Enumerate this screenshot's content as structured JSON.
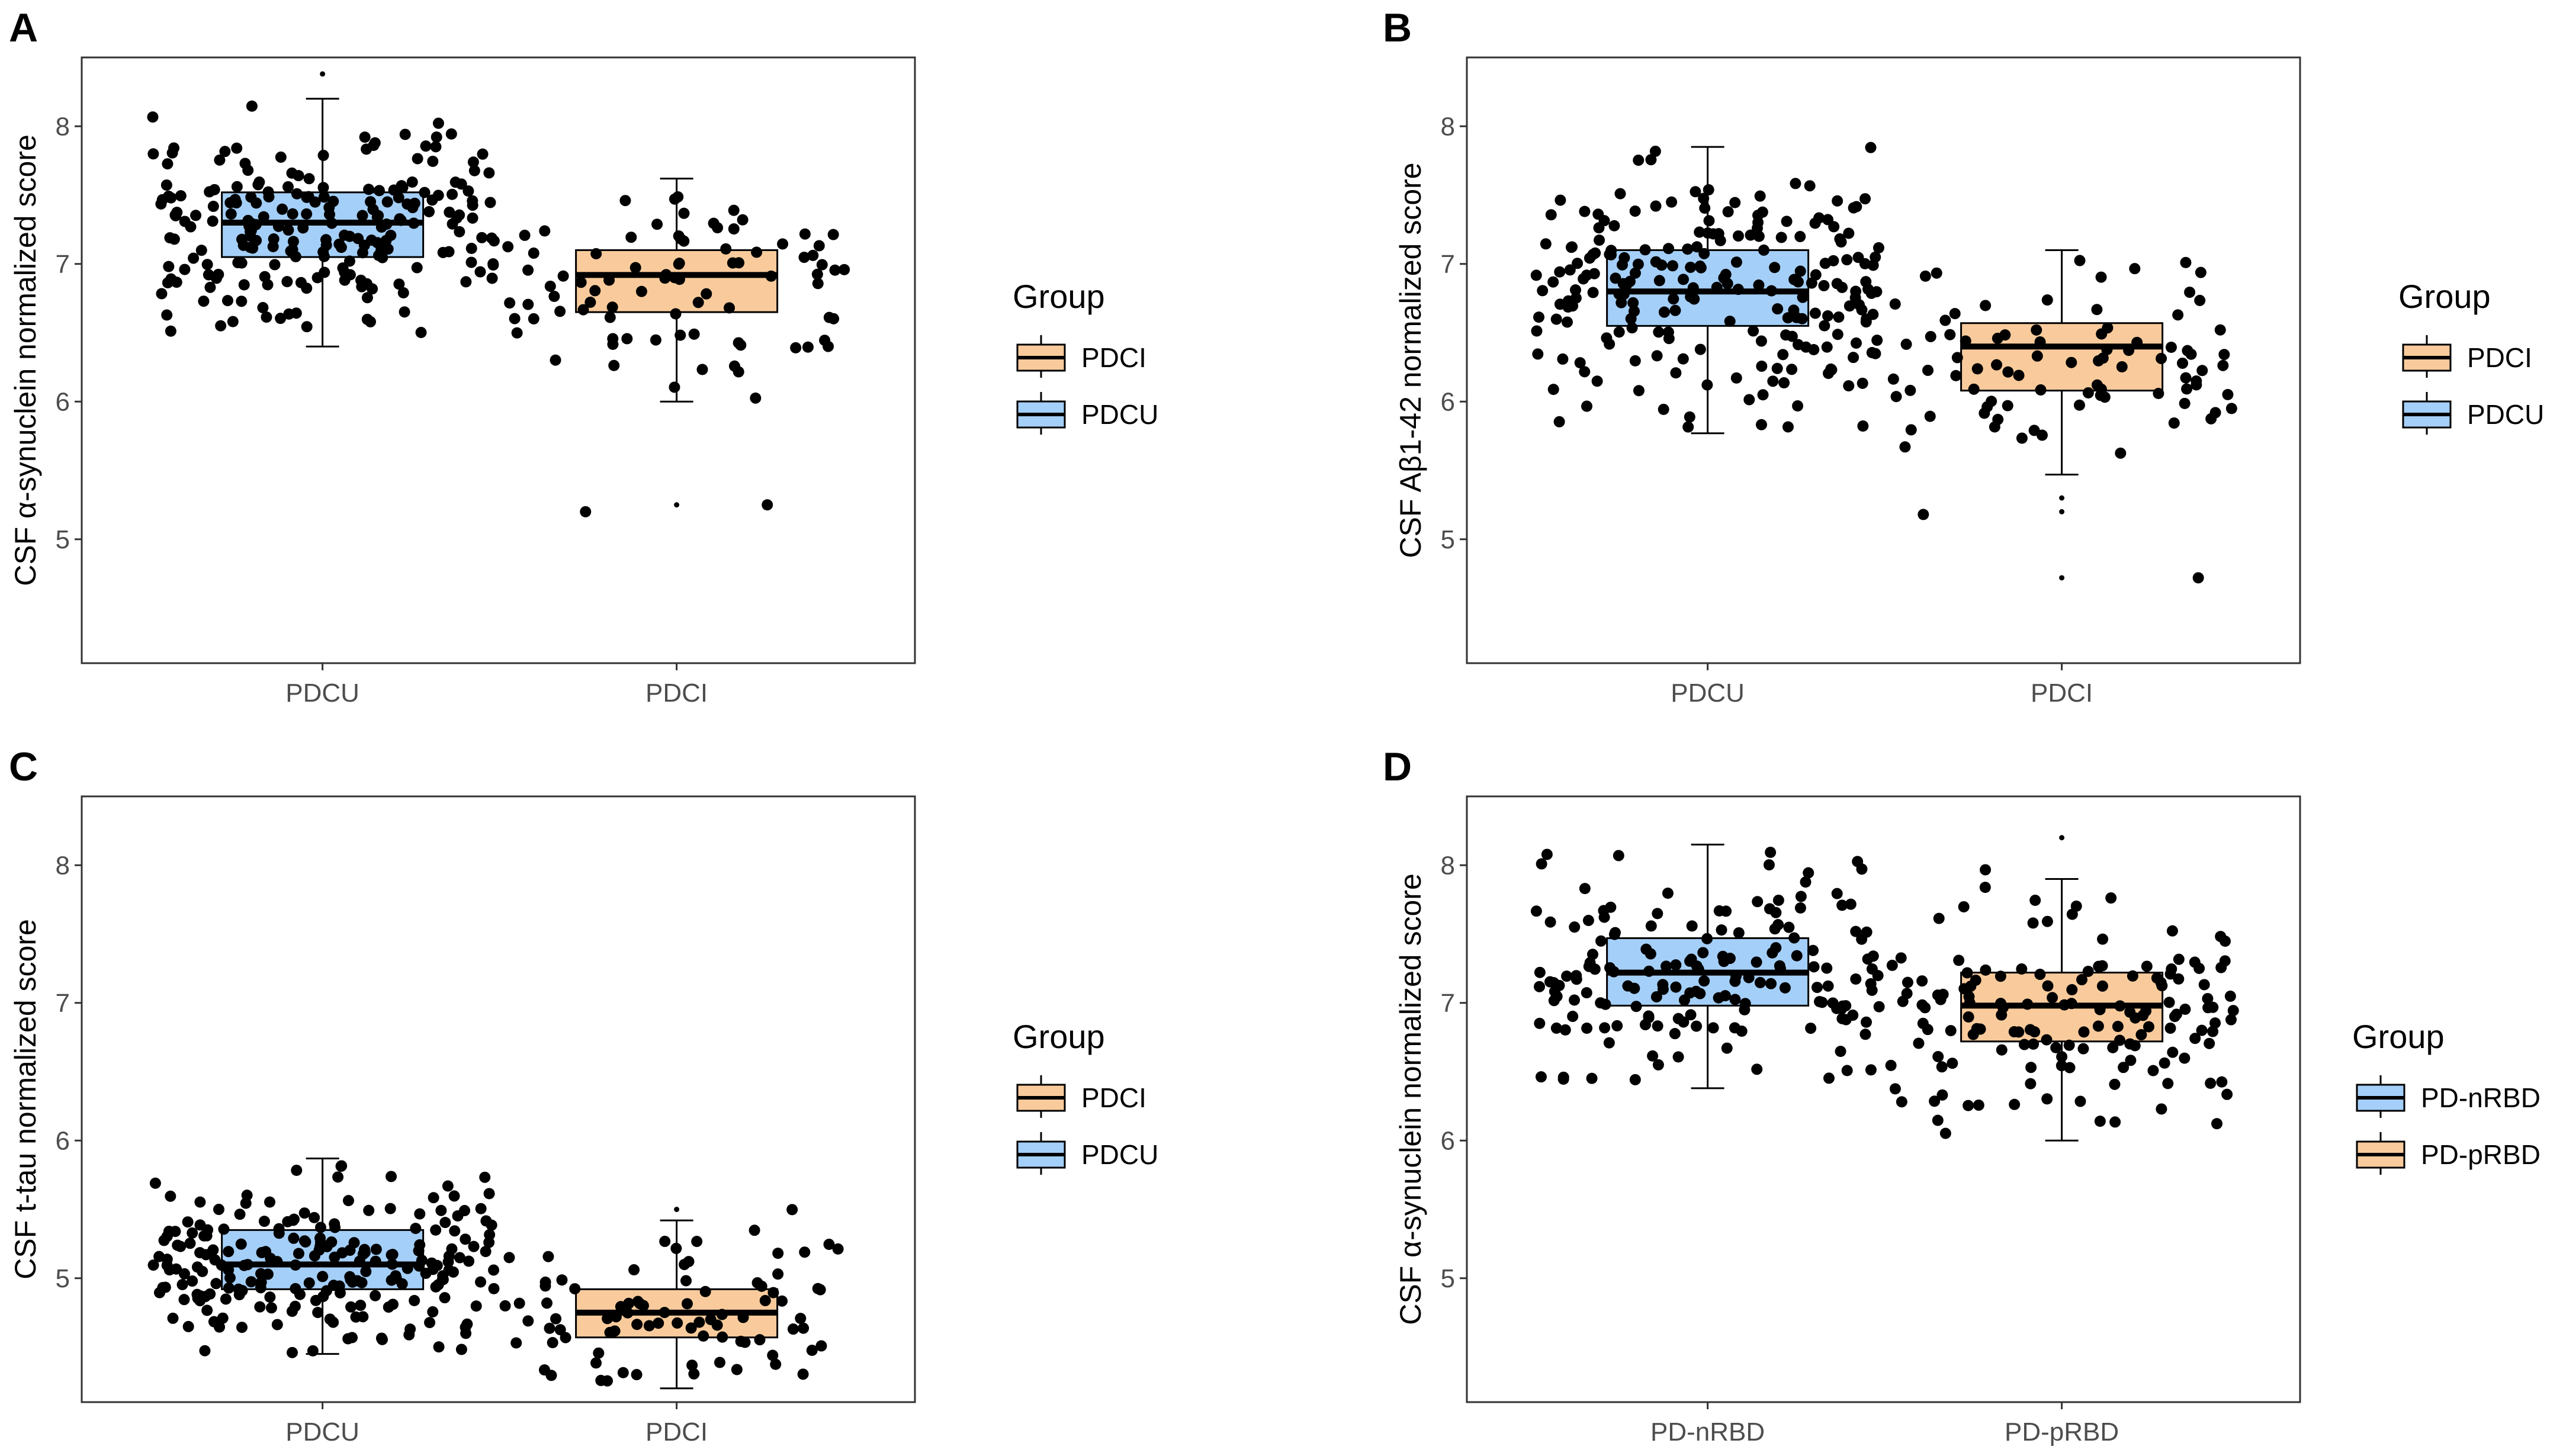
{
  "figure": {
    "point_color": "#000000",
    "colors": {
      "PDCI": "#F9CB9C",
      "PDCU": "#A4CFF8",
      "PD-nRBD": "#A4CFF8",
      "PD-pRBD": "#F9CB9C"
    }
  },
  "chart_data": [
    {
      "panel": "A",
      "type": "box",
      "ylabel": "CSF α-synuclein normalized score",
      "ylim": [
        4.1,
        8.5
      ],
      "yticks": [
        "5",
        "6",
        "7",
        "8"
      ],
      "categories": [
        "PDCU",
        "PDCI"
      ],
      "legend": {
        "title": "Group",
        "entries": [
          "PDCI",
          "PDCU"
        ]
      },
      "boxes": [
        {
          "group": "PDCU",
          "whisker_low": 6.4,
          "q1": 7.05,
          "median": 7.3,
          "q3": 7.52,
          "whisker_high": 8.2,
          "outliers": [
            8.38
          ],
          "jitter": {
            "n": 220,
            "min": 6.5,
            "max": 8.15,
            "center": 7.3,
            "spread": 0.38
          }
        },
        {
          "group": "PDCI",
          "whisker_low": 6.0,
          "q1": 6.65,
          "median": 6.92,
          "q3": 7.1,
          "whisker_high": 7.62,
          "outliers": [
            5.25
          ],
          "jitter": {
            "n": 85,
            "min": 6.0,
            "max": 7.6,
            "center": 6.9,
            "spread": 0.35,
            "extra": [
              5.2,
              5.25
            ]
          }
        }
      ]
    },
    {
      "panel": "B",
      "type": "box",
      "ylabel": "CSF Aβ1-42 normalized score",
      "ylim": [
        4.1,
        8.5
      ],
      "yticks": [
        "5",
        "6",
        "7",
        "8"
      ],
      "categories": [
        "PDCU",
        "PDCI"
      ],
      "legend": {
        "title": "Group",
        "entries": [
          "PDCI",
          "PDCU"
        ]
      },
      "boxes": [
        {
          "group": "PDCU",
          "whisker_low": 5.77,
          "q1": 6.55,
          "median": 6.8,
          "q3": 7.1,
          "whisker_high": 7.85,
          "outliers": [],
          "jitter": {
            "n": 220,
            "min": 5.8,
            "max": 7.85,
            "center": 6.8,
            "spread": 0.45
          }
        },
        {
          "group": "PDCI",
          "whisker_low": 5.47,
          "q1": 6.08,
          "median": 6.4,
          "q3": 6.57,
          "whisker_high": 7.1,
          "outliers": [
            5.3,
            5.2,
            4.72
          ],
          "jitter": {
            "n": 85,
            "min": 5.5,
            "max": 7.05,
            "center": 6.35,
            "spread": 0.4,
            "extra": [
              5.18,
              4.72
            ]
          }
        }
      ]
    },
    {
      "panel": "C",
      "type": "box",
      "ylabel": "CSF t-tau normalized score",
      "ylim": [
        4.1,
        8.5
      ],
      "yticks": [
        "5",
        "6",
        "7",
        "8"
      ],
      "categories": [
        "PDCU",
        "PDCI"
      ],
      "legend": {
        "title": "Group",
        "entries": [
          "PDCI",
          "PDCU"
        ]
      },
      "boxes": [
        {
          "group": "PDCU",
          "whisker_low": 4.45,
          "q1": 4.92,
          "median": 5.1,
          "q3": 5.35,
          "whisker_high": 5.87,
          "outliers": [],
          "jitter": {
            "n": 220,
            "min": 4.45,
            "max": 5.85,
            "center": 5.12,
            "spread": 0.3
          }
        },
        {
          "group": "PDCI",
          "whisker_low": 4.2,
          "q1": 4.57,
          "median": 4.75,
          "q3": 4.92,
          "whisker_high": 5.42,
          "outliers": [
            5.5
          ],
          "jitter": {
            "n": 85,
            "min": 4.25,
            "max": 5.5,
            "center": 4.75,
            "spread": 0.3
          }
        }
      ]
    },
    {
      "panel": "D",
      "type": "box",
      "ylabel": "CSF α-synuclein normalized score",
      "ylim": [
        4.1,
        8.5
      ],
      "yticks": [
        "5",
        "6",
        "7",
        "8"
      ],
      "categories": [
        "PD-nRBD",
        "PD-pRBD"
      ],
      "legend": {
        "title": "Group",
        "entries": [
          "PD-nRBD",
          "PD-pRBD"
        ]
      },
      "boxes": [
        {
          "group": "PD-nRBD",
          "whisker_low": 6.38,
          "q1": 6.98,
          "median": 7.22,
          "q3": 7.47,
          "whisker_high": 8.15,
          "outliers": [],
          "jitter": {
            "n": 170,
            "min": 6.4,
            "max": 8.12,
            "center": 7.2,
            "spread": 0.4
          }
        },
        {
          "group": "PD-pRBD",
          "whisker_low": 6.0,
          "q1": 6.72,
          "median": 6.98,
          "q3": 7.22,
          "whisker_high": 7.9,
          "outliers": [
            8.2
          ],
          "jitter": {
            "n": 150,
            "min": 6.0,
            "max": 8.22,
            "center": 6.95,
            "spread": 0.4
          }
        }
      ]
    }
  ]
}
